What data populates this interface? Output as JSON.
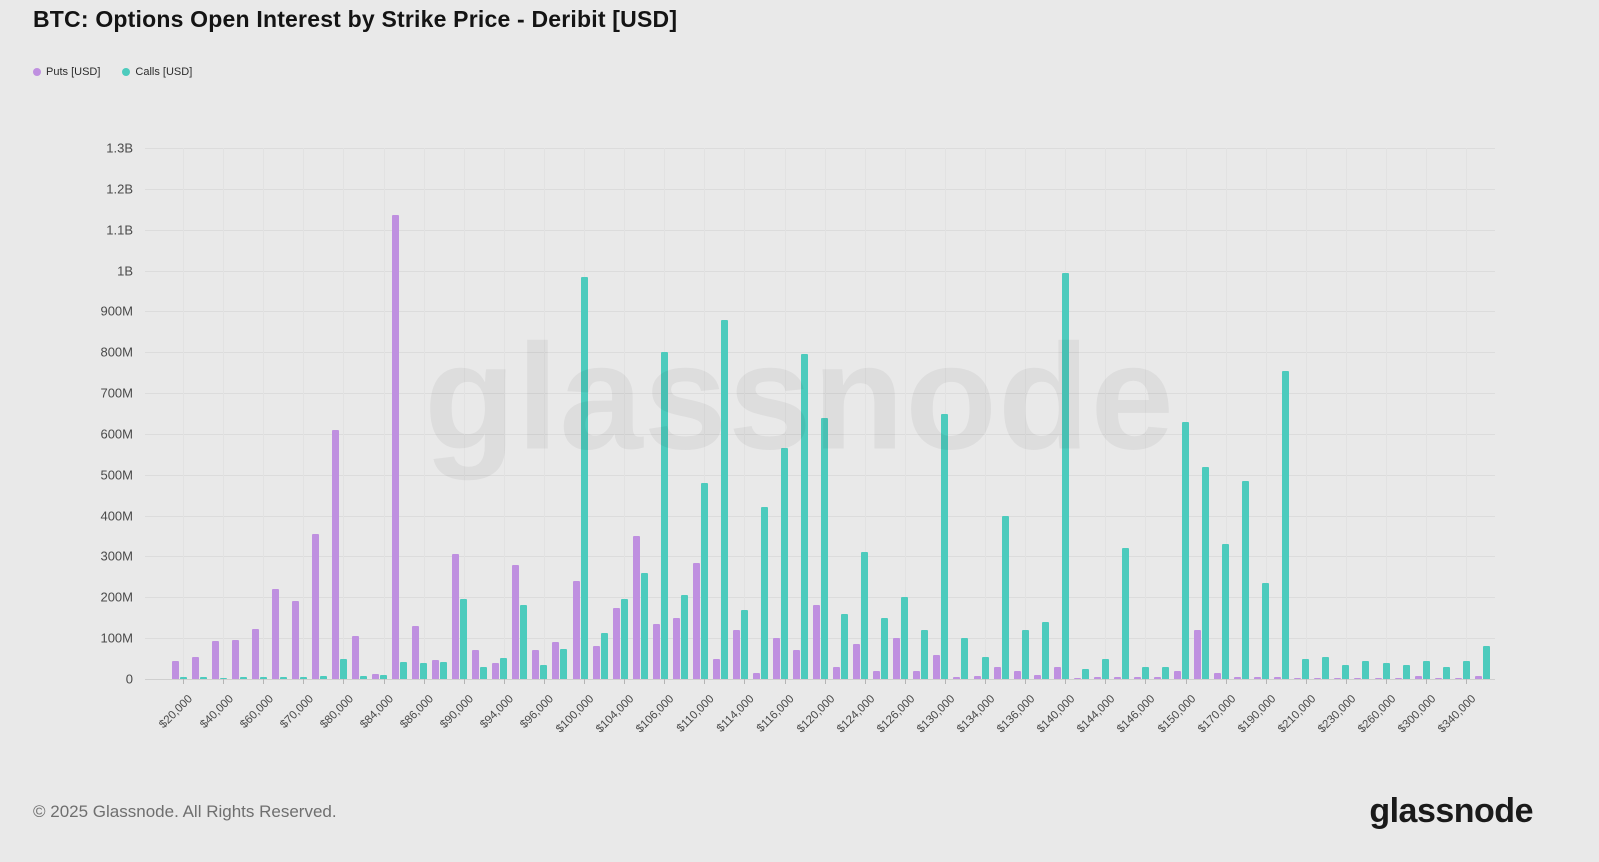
{
  "header": {
    "title": "BTC: Options Open Interest by Strike Price - Deribit [USD]"
  },
  "watermark": "glassnode",
  "footer": {
    "copyright": "© 2025 Glassnode. All Rights Reserved.",
    "logo_text": "glassnode"
  },
  "colors": {
    "background": "#e9e9e9",
    "puts": "#bf90e0",
    "calls": "#4dcbbd",
    "gridline": "#dcdcdc",
    "text": "#4a4a4a"
  },
  "chart_data": {
    "type": "bar",
    "title": "BTC: Options Open Interest by Strike Price - Deribit [USD]",
    "xlabel": "",
    "ylabel": "",
    "values_unit": "millions USD",
    "ylim": [
      0,
      1300
    ],
    "y_ticks": [
      "0",
      "100M",
      "200M",
      "300M",
      "400M",
      "500M",
      "600M",
      "700M",
      "800M",
      "900M",
      "1B",
      "1.1B",
      "1.2B",
      "1.3B"
    ],
    "legend_position": "top-left",
    "grid": "horizontal",
    "x_labels": [
      "$20,000",
      "",
      "$40,000",
      "",
      "$60,000",
      "",
      "$70,000",
      "",
      "$80,000",
      "",
      "$84,000",
      "",
      "$86,000",
      "",
      "$90,000",
      "",
      "$94,000",
      "",
      "$96,000",
      "",
      "$100,000",
      "",
      "$104,000",
      "",
      "$106,000",
      "",
      "$110,000",
      "",
      "$114,000",
      "",
      "$116,000",
      "",
      "$120,000",
      "",
      "$124,000",
      "",
      "$126,000",
      "",
      "$130,000",
      "",
      "$134,000",
      "",
      "$136,000",
      "",
      "$140,000",
      "",
      "$144,000",
      "",
      "$146,000",
      "",
      "$150,000",
      "",
      "$170,000",
      "",
      "$190,000",
      "",
      "$210,000",
      "",
      "$230,000",
      "",
      "$260,000",
      "",
      "$300,000",
      "",
      "$340,000",
      ""
    ],
    "series": [
      {
        "name": "Puts [USD]",
        "color": "#bf90e0",
        "values": [
          43,
          54,
          94,
          96,
          123,
          220,
          190,
          355,
          610,
          105,
          13,
          1135,
          129,
          46,
          305,
          72,
          40,
          280,
          70,
          91,
          240,
          80,
          175,
          350,
          135,
          150,
          285,
          50,
          120,
          15,
          100,
          70,
          180,
          30,
          85,
          20,
          100,
          20,
          60,
          5,
          8,
          30,
          20,
          10,
          30,
          3,
          5,
          5,
          5,
          5,
          20,
          120,
          15,
          5,
          5,
          5,
          3,
          3,
          3,
          3,
          3,
          3,
          8,
          3,
          3,
          8
        ]
      },
      {
        "name": "Calls [USD]",
        "color": "#4dcbbd",
        "values": [
          4,
          4,
          3,
          4,
          5,
          5,
          6,
          8,
          50,
          8,
          9,
          42,
          38,
          41,
          195,
          30,
          52,
          180,
          35,
          74,
          985,
          113,
          195,
          260,
          800,
          205,
          480,
          880,
          170,
          420,
          565,
          795,
          640,
          160,
          310,
          150,
          200,
          120,
          650,
          100,
          55,
          400,
          120,
          140,
          995,
          25,
          50,
          320,
          30,
          30,
          630,
          520,
          330,
          485,
          235,
          755,
          50,
          55,
          35,
          45,
          40,
          35,
          45,
          30,
          45,
          80
        ]
      }
    ]
  }
}
